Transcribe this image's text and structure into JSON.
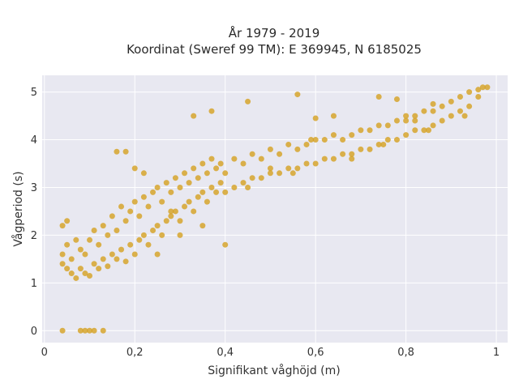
{
  "chart_data": {
    "type": "scatter",
    "title_lines": [
      "År 1979 - 2019",
      "Koordinat (Sweref 99 TM): E 369945, N 6185025"
    ],
    "xlabel": "Signifikant våghöjd (m)",
    "ylabel": "Vågperiod (s)",
    "xlim": [
      -0.005,
      1.025
    ],
    "ylim": [
      -0.25,
      5.35
    ],
    "x_ticks": [
      {
        "value": 0,
        "label": "0"
      },
      {
        "value": 0.2,
        "label": "0,2"
      },
      {
        "value": 0.4,
        "label": "0,4"
      },
      {
        "value": 0.6,
        "label": "0,6"
      },
      {
        "value": 0.8,
        "label": "0,8"
      },
      {
        "value": 1.0,
        "label": "1"
      }
    ],
    "y_ticks": [
      {
        "value": 0,
        "label": "0"
      },
      {
        "value": 1,
        "label": "1"
      },
      {
        "value": 2,
        "label": "2"
      },
      {
        "value": 3,
        "label": "3"
      },
      {
        "value": 4,
        "label": "4"
      },
      {
        "value": 5,
        "label": "5"
      }
    ],
    "grid": true,
    "background": "#e8e8f1",
    "marker_color": "#d4a020",
    "series": [
      {
        "points": [
          [
            0.04,
            1.4
          ],
          [
            0.04,
            1.6
          ],
          [
            0.05,
            1.3
          ],
          [
            0.05,
            1.8
          ],
          [
            0.06,
            1.2
          ],
          [
            0.06,
            1.5
          ],
          [
            0.07,
            1.1
          ],
          [
            0.07,
            1.9
          ],
          [
            0.08,
            1.3
          ],
          [
            0.08,
            1.7
          ],
          [
            0.09,
            1.2
          ],
          [
            0.09,
            1.6
          ],
          [
            0.1,
            1.15
          ],
          [
            0.1,
            1.9
          ],
          [
            0.11,
            1.4
          ],
          [
            0.11,
            2.1
          ],
          [
            0.12,
            1.3
          ],
          [
            0.12,
            1.8
          ],
          [
            0.13,
            1.5
          ],
          [
            0.13,
            2.2
          ],
          [
            0.14,
            1.35
          ],
          [
            0.14,
            2.0
          ],
          [
            0.15,
            1.6
          ],
          [
            0.15,
            2.4
          ],
          [
            0.16,
            1.5
          ],
          [
            0.16,
            2.1
          ],
          [
            0.17,
            1.7
          ],
          [
            0.17,
            2.6
          ],
          [
            0.18,
            1.45
          ],
          [
            0.18,
            2.3
          ],
          [
            0.19,
            1.8
          ],
          [
            0.19,
            2.5
          ],
          [
            0.2,
            1.6
          ],
          [
            0.2,
            2.7
          ],
          [
            0.21,
            1.9
          ],
          [
            0.21,
            2.4
          ],
          [
            0.22,
            2.0
          ],
          [
            0.22,
            2.8
          ],
          [
            0.23,
            1.8
          ],
          [
            0.23,
            2.6
          ],
          [
            0.24,
            2.1
          ],
          [
            0.24,
            2.9
          ],
          [
            0.25,
            2.2
          ],
          [
            0.25,
            3.0
          ],
          [
            0.26,
            2.0
          ],
          [
            0.26,
            2.7
          ],
          [
            0.27,
            2.3
          ],
          [
            0.27,
            3.1
          ],
          [
            0.28,
            2.4
          ],
          [
            0.28,
            2.9
          ],
          [
            0.29,
            2.5
          ],
          [
            0.29,
            3.2
          ],
          [
            0.3,
            2.3
          ],
          [
            0.3,
            3.0
          ],
          [
            0.31,
            2.6
          ],
          [
            0.31,
            3.3
          ],
          [
            0.32,
            2.7
          ],
          [
            0.32,
            3.1
          ],
          [
            0.33,
            2.5
          ],
          [
            0.33,
            3.4
          ],
          [
            0.34,
            2.8
          ],
          [
            0.34,
            3.2
          ],
          [
            0.35,
            2.9
          ],
          [
            0.35,
            3.5
          ],
          [
            0.36,
            2.7
          ],
          [
            0.36,
            3.3
          ],
          [
            0.37,
            3.0
          ],
          [
            0.37,
            3.6
          ],
          [
            0.38,
            2.9
          ],
          [
            0.38,
            3.4
          ],
          [
            0.39,
            3.1
          ],
          [
            0.39,
            3.5
          ],
          [
            0.4,
            2.9
          ],
          [
            0.4,
            3.3
          ],
          [
            0.42,
            3.0
          ],
          [
            0.42,
            3.6
          ],
          [
            0.44,
            3.1
          ],
          [
            0.44,
            3.5
          ],
          [
            0.46,
            3.2
          ],
          [
            0.46,
            3.7
          ],
          [
            0.48,
            3.2
          ],
          [
            0.48,
            3.6
          ],
          [
            0.5,
            3.3
          ],
          [
            0.5,
            3.8
          ],
          [
            0.52,
            3.3
          ],
          [
            0.52,
            3.7
          ],
          [
            0.54,
            3.4
          ],
          [
            0.54,
            3.9
          ],
          [
            0.56,
            3.4
          ],
          [
            0.56,
            3.8
          ],
          [
            0.58,
            3.5
          ],
          [
            0.58,
            3.9
          ],
          [
            0.6,
            3.5
          ],
          [
            0.6,
            4.0
          ],
          [
            0.62,
            3.6
          ],
          [
            0.62,
            4.0
          ],
          [
            0.64,
            3.6
          ],
          [
            0.64,
            4.1
          ],
          [
            0.66,
            3.7
          ],
          [
            0.66,
            4.0
          ],
          [
            0.68,
            3.7
          ],
          [
            0.68,
            4.1
          ],
          [
            0.7,
            3.8
          ],
          [
            0.7,
            4.2
          ],
          [
            0.72,
            3.8
          ],
          [
            0.72,
            4.2
          ],
          [
            0.74,
            3.9
          ],
          [
            0.74,
            4.3
          ],
          [
            0.76,
            4.0
          ],
          [
            0.76,
            4.3
          ],
          [
            0.78,
            4.0
          ],
          [
            0.78,
            4.4
          ],
          [
            0.8,
            4.1
          ],
          [
            0.8,
            4.4
          ],
          [
            0.82,
            4.2
          ],
          [
            0.82,
            4.5
          ],
          [
            0.84,
            4.2
          ],
          [
            0.84,
            4.6
          ],
          [
            0.86,
            4.3
          ],
          [
            0.86,
            4.6
          ],
          [
            0.88,
            4.4
          ],
          [
            0.88,
            4.7
          ],
          [
            0.9,
            4.5
          ],
          [
            0.9,
            4.8
          ],
          [
            0.92,
            4.6
          ],
          [
            0.92,
            4.9
          ],
          [
            0.94,
            4.7
          ],
          [
            0.94,
            5.0
          ],
          [
            0.96,
            4.9
          ],
          [
            0.96,
            5.05
          ],
          [
            0.97,
            5.1
          ],
          [
            0.98,
            5.1
          ],
          [
            0.04,
            0.0
          ],
          [
            0.08,
            0.0
          ],
          [
            0.09,
            0.0
          ],
          [
            0.1,
            0.0
          ],
          [
            0.11,
            0.0
          ],
          [
            0.13,
            0.0
          ],
          [
            0.04,
            2.2
          ],
          [
            0.05,
            2.3
          ],
          [
            0.16,
            3.75
          ],
          [
            0.18,
            3.75
          ],
          [
            0.2,
            3.4
          ],
          [
            0.22,
            3.3
          ],
          [
            0.33,
            4.5
          ],
          [
            0.37,
            4.6
          ],
          [
            0.45,
            4.8
          ],
          [
            0.56,
            4.95
          ],
          [
            0.59,
            4.0
          ],
          [
            0.6,
            4.45
          ],
          [
            0.64,
            4.5
          ],
          [
            0.74,
            4.9
          ],
          [
            0.78,
            4.85
          ],
          [
            0.8,
            4.5
          ],
          [
            0.82,
            4.4
          ],
          [
            0.86,
            4.75
          ],
          [
            0.4,
            1.8
          ],
          [
            0.25,
            1.6
          ],
          [
            0.3,
            2.0
          ],
          [
            0.35,
            2.2
          ],
          [
            0.28,
            2.5
          ],
          [
            0.45,
            3.0
          ],
          [
            0.5,
            3.4
          ],
          [
            0.55,
            3.3
          ],
          [
            0.68,
            3.6
          ],
          [
            0.75,
            3.9
          ],
          [
            0.85,
            4.2
          ],
          [
            0.93,
            4.5
          ]
        ]
      }
    ]
  }
}
